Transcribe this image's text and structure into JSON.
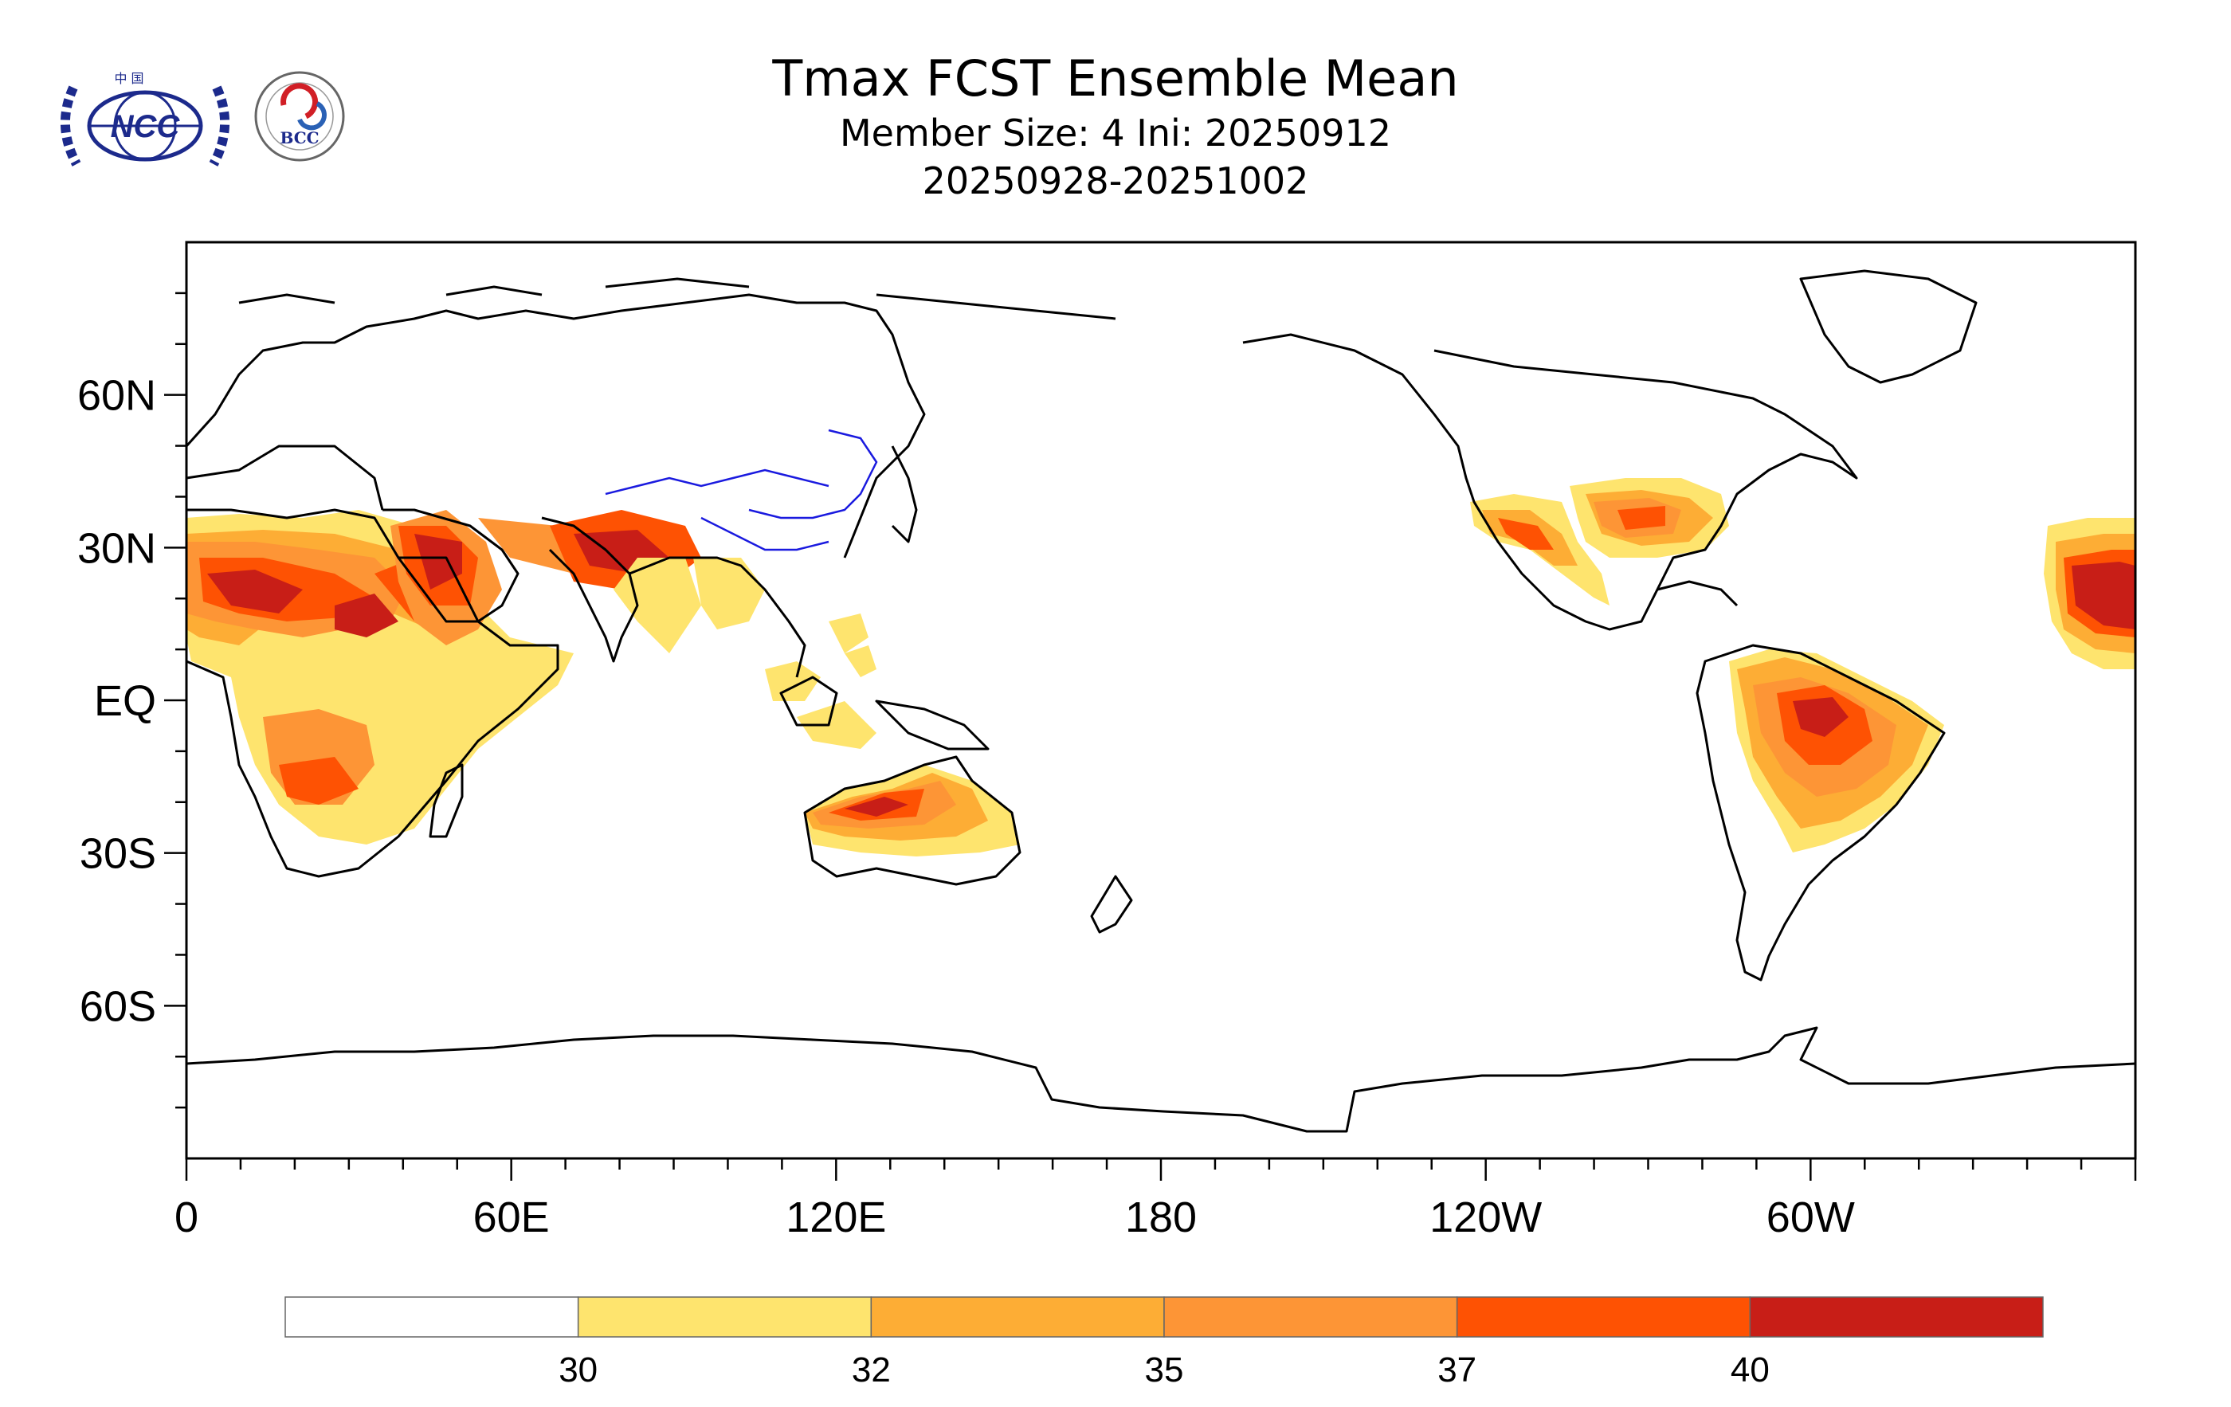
{
  "title": "Tmax FCST Ensemble Mean",
  "subtitle": "Member Size: 4  Ini: 20250912",
  "period": "20250928-20251002",
  "logos": {
    "left": {
      "name": "NCC",
      "text": "NCC",
      "header": "中 国"
    },
    "right": {
      "name": "BCC",
      "text": "BCC",
      "ring_text": "BEIJING CLIMATE CENTER"
    }
  },
  "axes": {
    "x_ticks": [
      "0",
      "60E",
      "120E",
      "180",
      "120W",
      "60W"
    ],
    "y_ticks": [
      "60N",
      "30N",
      "EQ",
      "30S",
      "60S"
    ]
  },
  "colorbar": {
    "levels": [
      "30",
      "32",
      "35",
      "37",
      "40"
    ],
    "colors": [
      "#ffffff",
      "#fee46e",
      "#fdad35",
      "#fd9536",
      "#fe5203",
      "#c81e17"
    ]
  }
}
